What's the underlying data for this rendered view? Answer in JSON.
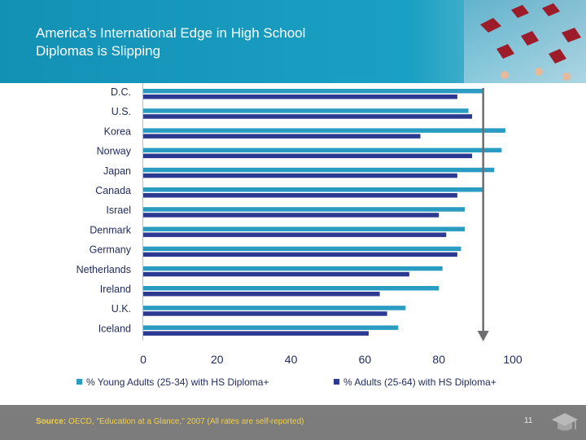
{
  "slide": {
    "title_line1": "America’s International Edge in High School",
    "title_line2": "Diplomas is Slipping",
    "source_label": "Source:",
    "source_text": " OECD, \"Education at a Glance,\" 2007 (All rates are self-reported)",
    "page_number": "11"
  },
  "colors": {
    "header": "#1a9cc0",
    "young_series": "#2a9cc1",
    "adult_series": "#2b3990",
    "arrow": "#6d6e71",
    "footer": "#7c7c7c",
    "source_text": "#f4d03f"
  },
  "chart_data": {
    "type": "bar",
    "orientation": "horizontal",
    "categories": [
      "D.C.",
      "U.S.",
      "Korea",
      "Norway",
      "Japan",
      "Canada",
      "Israel",
      "Denmark",
      "Germany",
      "Netherlands",
      "Ireland",
      "U.K.",
      "Iceland"
    ],
    "series": [
      {
        "name": "% Young Adults (25-34) with HS Diploma+",
        "color": "#2a9cc1",
        "values": [
          92,
          88,
          98,
          97,
          95,
          92,
          87,
          87,
          86,
          81,
          80,
          71,
          69
        ]
      },
      {
        "name": "% Adults (25-64) with HS Diploma+",
        "color": "#2b3990",
        "values": [
          85,
          89,
          75,
          89,
          85,
          85,
          80,
          82,
          85,
          72,
          64,
          66,
          61
        ]
      }
    ],
    "x_ticks": [
      "0",
      "20",
      "40",
      "60",
      "80",
      "100"
    ],
    "xlim": [
      0,
      100
    ],
    "reference_arrow_value": 92,
    "legend_position": "bottom",
    "grid": false
  }
}
